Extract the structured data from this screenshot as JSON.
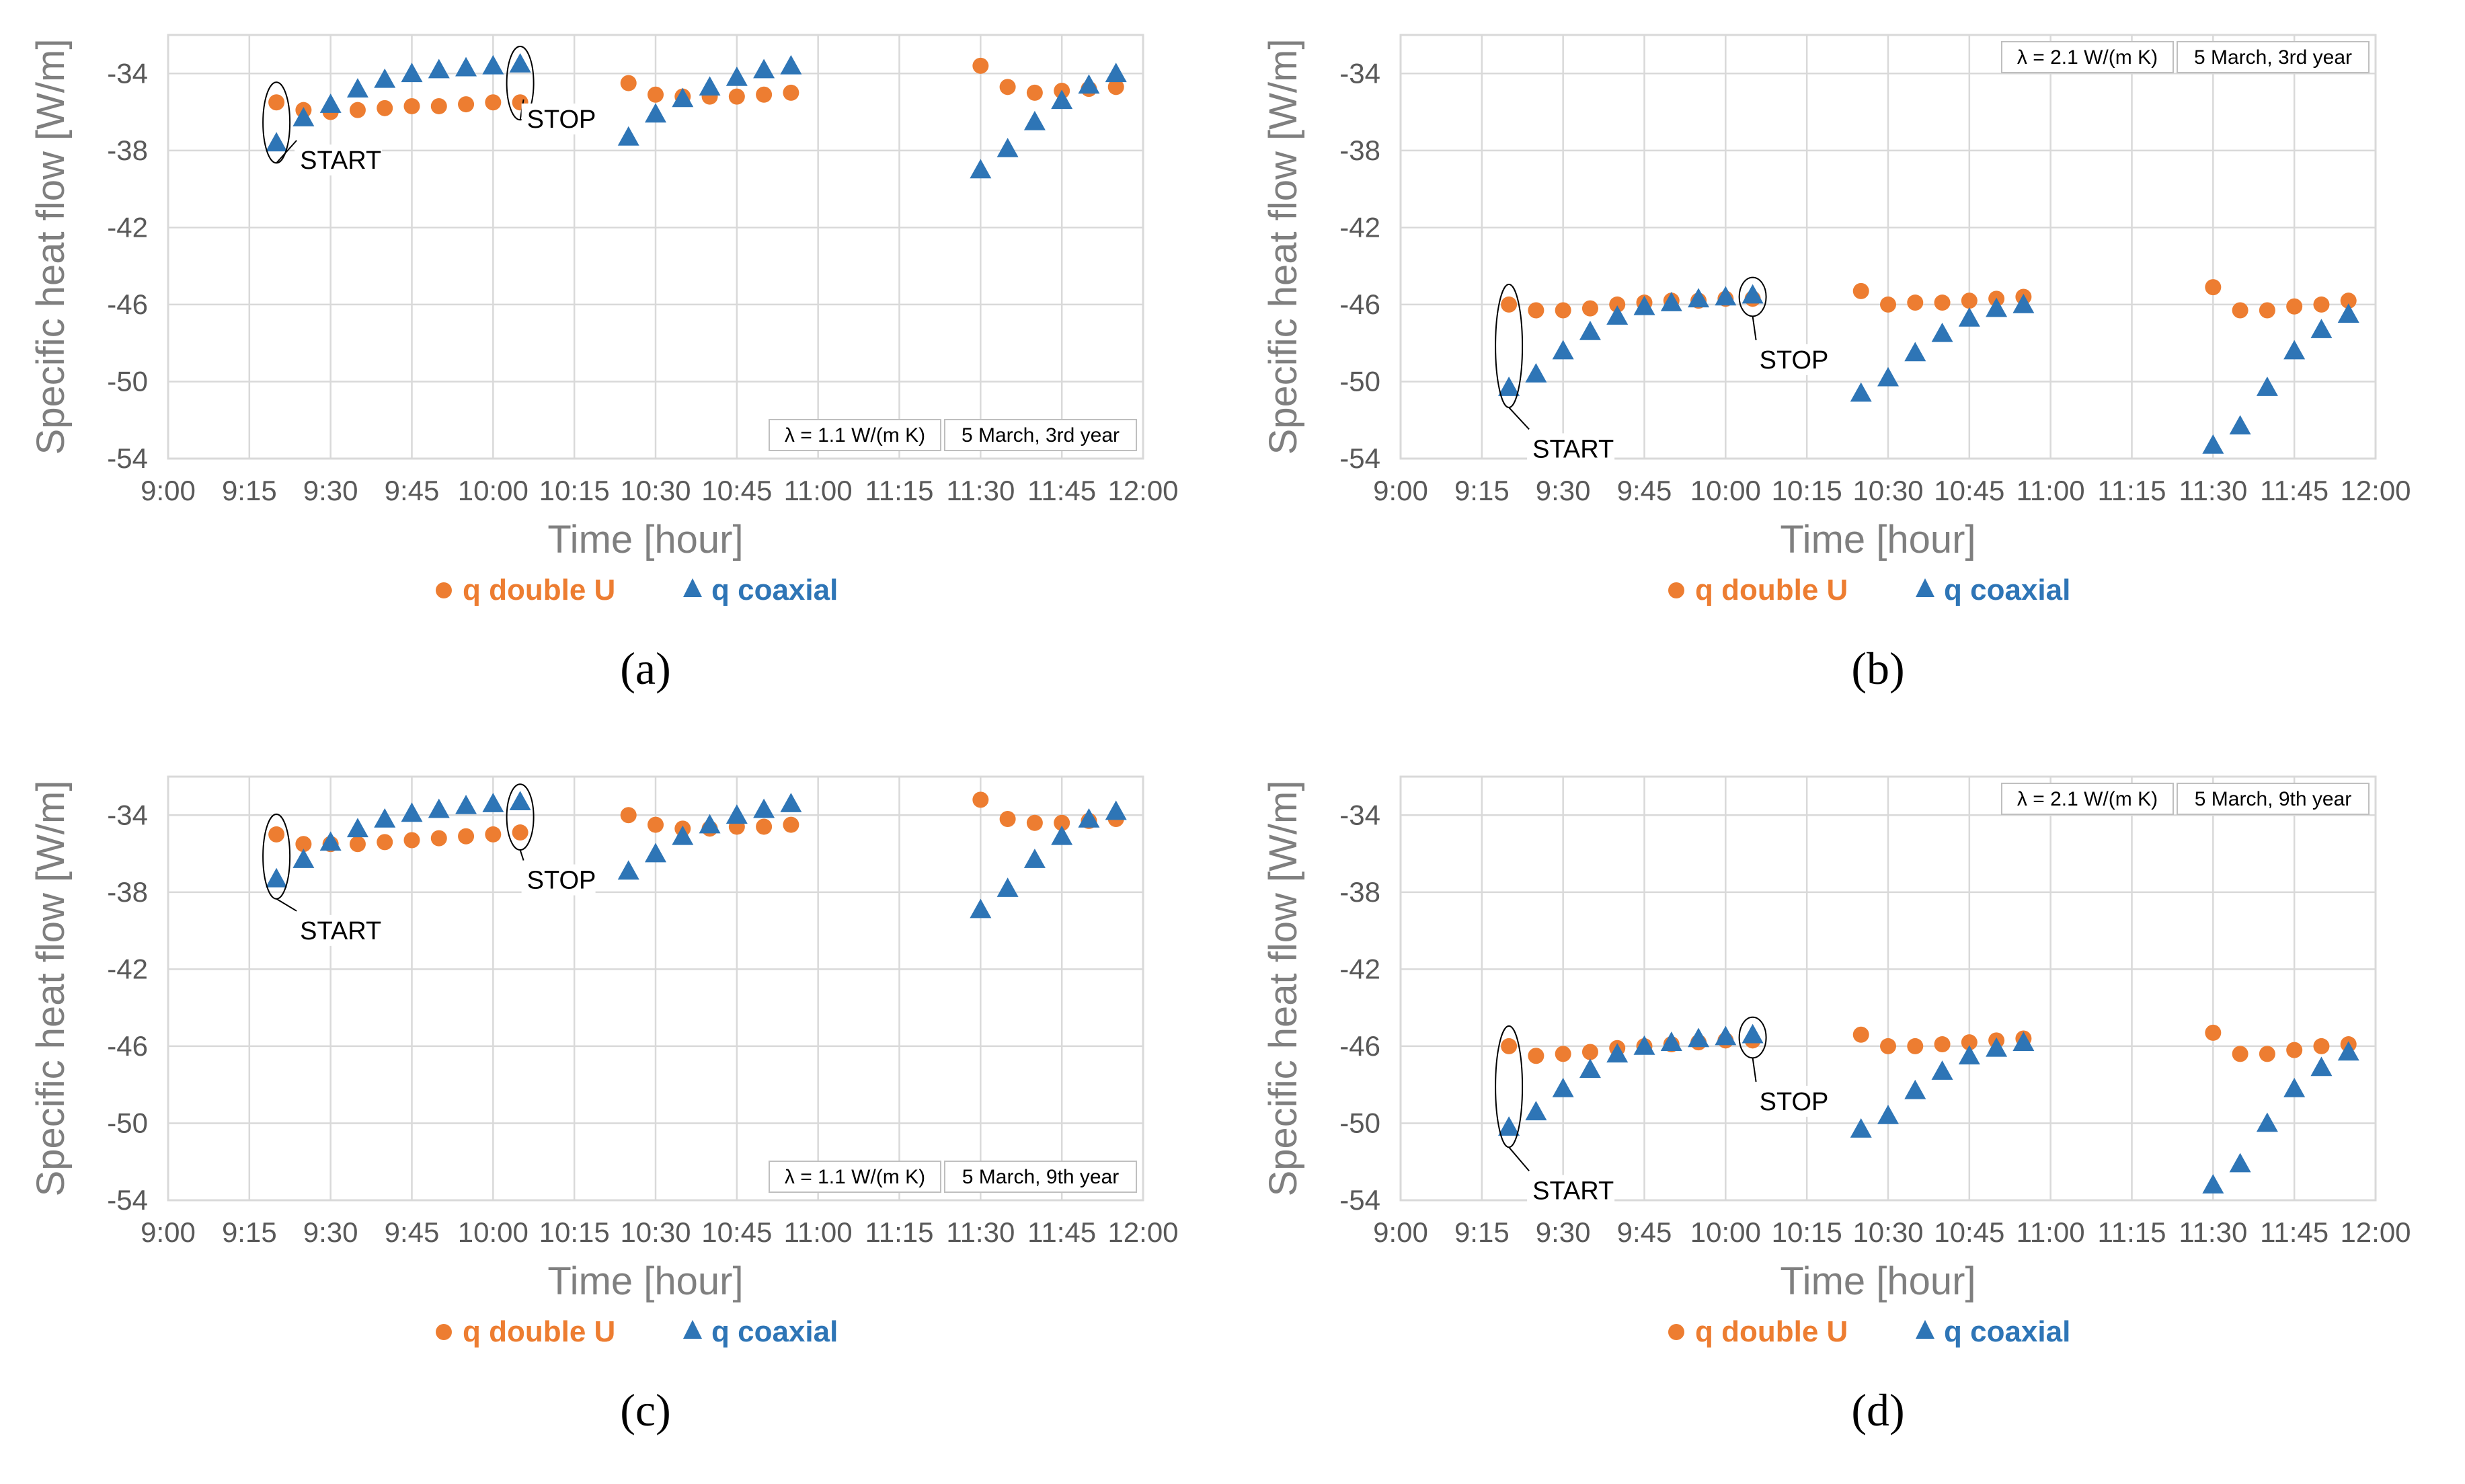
{
  "figure": {
    "colors": {
      "double_u": "#ed7d31",
      "coaxial": "#2e75b6",
      "grid": "#d9d9d9",
      "axis_text": "#595959",
      "title_text": "#7f7f7f"
    }
  },
  "chart_data": [
    {
      "type": "scatter",
      "panel": "(a)",
      "ylabel": "Specific heat flow [W/m]",
      "xlabel": "Time [hour]",
      "x_ticks": [
        "9:00",
        "9:15",
        "9:30",
        "9:45",
        "10:00",
        "10:15",
        "10:30",
        "10:45",
        "11:00",
        "11:15",
        "11:30",
        "11:45",
        "12:00"
      ],
      "y_ticks": [
        "-34",
        "-38",
        "-42",
        "-46",
        "-50",
        "-54"
      ],
      "ylim": [
        -54,
        -32
      ],
      "xlim": [
        "9:00",
        "12:00"
      ],
      "grid": true,
      "legend_position": "bottom",
      "info_lambda": "λ = 1.1 W/(m K)",
      "info_date": "5 March, 3rd year",
      "info_position": "bottom-right",
      "annotations": [
        {
          "text": "START",
          "x": "9:20",
          "y": -36.5
        },
        {
          "text": "STOP",
          "x": "10:05",
          "y": -35
        }
      ],
      "series": [
        {
          "name": "q double U",
          "marker": "circle",
          "points": [
            [
              "9:20",
              -35.5
            ],
            [
              "9:25",
              -35.9
            ],
            [
              "9:30",
              -36.0
            ],
            [
              "9:35",
              -35.9
            ],
            [
              "9:40",
              -35.8
            ],
            [
              "9:45",
              -35.7
            ],
            [
              "9:50",
              -35.7
            ],
            [
              "9:55",
              -35.6
            ],
            [
              "10:00",
              -35.5
            ],
            [
              "10:05",
              -35.5
            ],
            [
              "10:25",
              -34.5
            ],
            [
              "10:30",
              -35.1
            ],
            [
              "10:35",
              -35.2
            ],
            [
              "10:40",
              -35.2
            ],
            [
              "10:45",
              -35.2
            ],
            [
              "10:50",
              -35.1
            ],
            [
              "10:55",
              -35.0
            ],
            [
              "11:30",
              -33.6
            ],
            [
              "11:35",
              -34.7
            ],
            [
              "11:40",
              -35.0
            ],
            [
              "11:45",
              -34.9
            ],
            [
              "11:50",
              -34.8
            ],
            [
              "11:55",
              -34.7
            ]
          ]
        },
        {
          "name": "q coaxial",
          "marker": "triangle",
          "points": [
            [
              "9:20",
              -37.6
            ],
            [
              "9:25",
              -36.3
            ],
            [
              "9:30",
              -35.6
            ],
            [
              "9:35",
              -34.8
            ],
            [
              "9:40",
              -34.3
            ],
            [
              "9:45",
              -34.0
            ],
            [
              "9:50",
              -33.8
            ],
            [
              "9:55",
              -33.7
            ],
            [
              "10:00",
              -33.6
            ],
            [
              "10:05",
              -33.5
            ],
            [
              "10:25",
              -37.3
            ],
            [
              "10:30",
              -36.1
            ],
            [
              "10:35",
              -35.3
            ],
            [
              "10:40",
              -34.7
            ],
            [
              "10:45",
              -34.2
            ],
            [
              "10:50",
              -33.8
            ],
            [
              "10:55",
              -33.6
            ],
            [
              "11:30",
              -39.0
            ],
            [
              "11:35",
              -37.9
            ],
            [
              "11:40",
              -36.5
            ],
            [
              "11:45",
              -35.4
            ],
            [
              "11:50",
              -34.6
            ],
            [
              "11:55",
              -34.0
            ]
          ]
        }
      ]
    },
    {
      "type": "scatter",
      "panel": "(b)",
      "ylabel": "Specific heat flow [W/m]",
      "xlabel": "Time [hour]",
      "x_ticks": [
        "9:00",
        "9:15",
        "9:30",
        "9:45",
        "10:00",
        "10:15",
        "10:30",
        "10:45",
        "11:00",
        "11:15",
        "11:30",
        "11:45",
        "12:00"
      ],
      "y_ticks": [
        "-34",
        "-38",
        "-42",
        "-46",
        "-50",
        "-54"
      ],
      "ylim": [
        -54,
        -32
      ],
      "xlim": [
        "9:00",
        "12:00"
      ],
      "grid": true,
      "legend_position": "bottom",
      "info_lambda": "λ = 2.1 W/(m K)",
      "info_date": "5 March, 3rd year",
      "info_position": "top-right",
      "annotations": [
        {
          "text": "START",
          "x": "9:20",
          "y": -51.5
        },
        {
          "text": "STOP",
          "x": "10:05",
          "y": -47.5
        }
      ],
      "series": [
        {
          "name": "q double U",
          "marker": "circle",
          "points": [
            [
              "9:20",
              -46.0
            ],
            [
              "9:25",
              -46.3
            ],
            [
              "9:30",
              -46.3
            ],
            [
              "9:35",
              -46.2
            ],
            [
              "9:40",
              -46.0
            ],
            [
              "9:45",
              -45.9
            ],
            [
              "9:50",
              -45.8
            ],
            [
              "9:55",
              -45.8
            ],
            [
              "10:00",
              -45.7
            ],
            [
              "10:05",
              -45.7
            ],
            [
              "10:25",
              -45.3
            ],
            [
              "10:30",
              -46.0
            ],
            [
              "10:35",
              -45.9
            ],
            [
              "10:40",
              -45.9
            ],
            [
              "10:45",
              -45.8
            ],
            [
              "10:50",
              -45.7
            ],
            [
              "10:55",
              -45.6
            ],
            [
              "11:30",
              -45.1
            ],
            [
              "11:35",
              -46.3
            ],
            [
              "11:40",
              -46.3
            ],
            [
              "11:45",
              -46.1
            ],
            [
              "11:50",
              -46.0
            ],
            [
              "11:55",
              -45.8
            ]
          ]
        },
        {
          "name": "q coaxial",
          "marker": "triangle",
          "points": [
            [
              "9:20",
              -50.3
            ],
            [
              "9:25",
              -49.6
            ],
            [
              "9:30",
              -48.4
            ],
            [
              "9:35",
              -47.4
            ],
            [
              "9:40",
              -46.6
            ],
            [
              "9:45",
              -46.1
            ],
            [
              "9:50",
              -45.9
            ],
            [
              "9:55",
              -45.7
            ],
            [
              "10:00",
              -45.6
            ],
            [
              "10:05",
              -45.5
            ],
            [
              "10:25",
              -50.6
            ],
            [
              "10:30",
              -49.8
            ],
            [
              "10:35",
              -48.5
            ],
            [
              "10:40",
              -47.5
            ],
            [
              "10:45",
              -46.7
            ],
            [
              "10:50",
              -46.2
            ],
            [
              "10:55",
              -46.0
            ],
            [
              "11:30",
              -53.3
            ],
            [
              "11:35",
              -52.3
            ],
            [
              "11:40",
              -50.3
            ],
            [
              "11:45",
              -48.4
            ],
            [
              "11:50",
              -47.3
            ],
            [
              "11:55",
              -46.5
            ]
          ]
        }
      ]
    },
    {
      "type": "scatter",
      "panel": "(c)",
      "ylabel": "Specific heat flow [W/m]",
      "xlabel": "Time [hour]",
      "x_ticks": [
        "9:00",
        "9:15",
        "9:30",
        "9:45",
        "10:00",
        "10:15",
        "10:30",
        "10:45",
        "11:00",
        "11:15",
        "11:30",
        "11:45",
        "12:00"
      ],
      "y_ticks": [
        "-34",
        "-38",
        "-42",
        "-46",
        "-50",
        "-54"
      ],
      "ylim": [
        -54,
        -32
      ],
      "xlim": [
        "9:00",
        "12:00"
      ],
      "grid": true,
      "legend_position": "bottom",
      "info_lambda": "λ = 1.1 W/(m K)",
      "info_date": "5 March, 9th year",
      "info_position": "bottom-right",
      "annotations": [
        {
          "text": "START",
          "x": "9:20",
          "y": -38
        },
        {
          "text": "STOP",
          "x": "10:05",
          "y": -36
        }
      ],
      "series": [
        {
          "name": "q double U",
          "marker": "circle",
          "points": [
            [
              "9:20",
              -35.0
            ],
            [
              "9:25",
              -35.5
            ],
            [
              "9:30",
              -35.5
            ],
            [
              "9:35",
              -35.5
            ],
            [
              "9:40",
              -35.4
            ],
            [
              "9:45",
              -35.3
            ],
            [
              "9:50",
              -35.2
            ],
            [
              "9:55",
              -35.1
            ],
            [
              "10:00",
              -35.0
            ],
            [
              "10:05",
              -34.9
            ],
            [
              "10:25",
              -34.0
            ],
            [
              "10:30",
              -34.5
            ],
            [
              "10:35",
              -34.7
            ],
            [
              "10:40",
              -34.7
            ],
            [
              "10:45",
              -34.6
            ],
            [
              "10:50",
              -34.6
            ],
            [
              "10:55",
              -34.5
            ],
            [
              "11:30",
              -33.2
            ],
            [
              "11:35",
              -34.2
            ],
            [
              "11:40",
              -34.4
            ],
            [
              "11:45",
              -34.4
            ],
            [
              "11:50",
              -34.3
            ],
            [
              "11:55",
              -34.2
            ]
          ]
        },
        {
          "name": "q coaxial",
          "marker": "triangle",
          "points": [
            [
              "9:20",
              -37.3
            ],
            [
              "9:25",
              -36.3
            ],
            [
              "9:30",
              -35.4
            ],
            [
              "9:35",
              -34.7
            ],
            [
              "9:40",
              -34.2
            ],
            [
              "9:45",
              -33.9
            ],
            [
              "9:50",
              -33.7
            ],
            [
              "9:55",
              -33.5
            ],
            [
              "10:00",
              -33.4
            ],
            [
              "10:05",
              -33.3
            ],
            [
              "10:25",
              -36.9
            ],
            [
              "10:30",
              -36.0
            ],
            [
              "10:35",
              -35.1
            ],
            [
              "10:40",
              -34.5
            ],
            [
              "10:45",
              -34.0
            ],
            [
              "10:50",
              -33.7
            ],
            [
              "10:55",
              -33.4
            ],
            [
              "11:30",
              -38.9
            ],
            [
              "11:35",
              -37.8
            ],
            [
              "11:40",
              -36.3
            ],
            [
              "11:45",
              -35.1
            ],
            [
              "11:50",
              -34.2
            ],
            [
              "11:55",
              -33.8
            ]
          ]
        }
      ]
    },
    {
      "type": "scatter",
      "panel": "(d)",
      "ylabel": "Specific heat flow [W/m]",
      "xlabel": "Time [hour]",
      "x_ticks": [
        "9:00",
        "9:15",
        "9:30",
        "9:45",
        "10:00",
        "10:15",
        "10:30",
        "10:45",
        "11:00",
        "11:15",
        "11:30",
        "11:45",
        "12:00"
      ],
      "y_ticks": [
        "-34",
        "-38",
        "-42",
        "-46",
        "-50",
        "-54"
      ],
      "ylim": [
        -54,
        -32
      ],
      "xlim": [
        "9:00",
        "12:00"
      ],
      "grid": true,
      "legend_position": "bottom",
      "info_lambda": "λ = 2.1 W/(m K)",
      "info_date": "5 March, 9th year",
      "info_position": "top-right",
      "annotations": [
        {
          "text": "START",
          "x": "9:20",
          "y": -51.5
        },
        {
          "text": "STOP",
          "x": "10:05",
          "y": -47.5
        }
      ],
      "series": [
        {
          "name": "q double U",
          "marker": "circle",
          "points": [
            [
              "9:20",
              -46.0
            ],
            [
              "9:25",
              -46.5
            ],
            [
              "9:30",
              -46.4
            ],
            [
              "9:35",
              -46.3
            ],
            [
              "9:40",
              -46.1
            ],
            [
              "9:45",
              -46.0
            ],
            [
              "9:50",
              -45.9
            ],
            [
              "9:55",
              -45.8
            ],
            [
              "10:00",
              -45.7
            ],
            [
              "10:05",
              -45.7
            ],
            [
              "10:25",
              -45.4
            ],
            [
              "10:30",
              -46.0
            ],
            [
              "10:35",
              -46.0
            ],
            [
              "10:40",
              -45.9
            ],
            [
              "10:45",
              -45.8
            ],
            [
              "10:50",
              -45.7
            ],
            [
              "10:55",
              -45.6
            ],
            [
              "11:30",
              -45.3
            ],
            [
              "11:35",
              -46.4
            ],
            [
              "11:40",
              -46.4
            ],
            [
              "11:45",
              -46.2
            ],
            [
              "11:50",
              -46.0
            ],
            [
              "11:55",
              -45.9
            ]
          ]
        },
        {
          "name": "q coaxial",
          "marker": "triangle",
          "points": [
            [
              "9:20",
              -50.2
            ],
            [
              "9:25",
              -49.4
            ],
            [
              "9:30",
              -48.2
            ],
            [
              "9:35",
              -47.2
            ],
            [
              "9:40",
              -46.4
            ],
            [
              "9:45",
              -46.0
            ],
            [
              "9:50",
              -45.8
            ],
            [
              "9:55",
              -45.6
            ],
            [
              "10:00",
              -45.5
            ],
            [
              "10:05",
              -45.4
            ],
            [
              "10:25",
              -50.3
            ],
            [
              "10:30",
              -49.6
            ],
            [
              "10:35",
              -48.3
            ],
            [
              "10:40",
              -47.3
            ],
            [
              "10:45",
              -46.5
            ],
            [
              "10:50",
              -46.1
            ],
            [
              "10:55",
              -45.8
            ],
            [
              "11:30",
              -53.2
            ],
            [
              "11:35",
              -52.1
            ],
            [
              "11:40",
              -50.0
            ],
            [
              "11:45",
              -48.2
            ],
            [
              "11:50",
              -47.1
            ],
            [
              "11:55",
              -46.3
            ]
          ]
        }
      ]
    }
  ]
}
